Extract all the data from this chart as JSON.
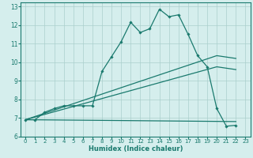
{
  "xlabel": "Humidex (Indice chaleur)",
  "background_color": "#d5eeed",
  "grid_color": "#aacfcc",
  "line_color": "#1a7a6e",
  "xlim": [
    -0.5,
    23.5
  ],
  "ylim": [
    6,
    13.2
  ],
  "xticks": [
    0,
    1,
    2,
    3,
    4,
    5,
    6,
    7,
    8,
    9,
    10,
    11,
    12,
    13,
    14,
    15,
    16,
    17,
    18,
    19,
    20,
    21,
    22,
    23
  ],
  "yticks": [
    6,
    7,
    8,
    9,
    10,
    11,
    12,
    13
  ],
  "series": [
    {
      "x": [
        0,
        1,
        2,
        3,
        4,
        5,
        6,
        7,
        8,
        9,
        10,
        11,
        12,
        13,
        14,
        15,
        16,
        17,
        18,
        19,
        20,
        21,
        22
      ],
      "y": [
        6.9,
        6.9,
        7.3,
        7.5,
        7.65,
        7.65,
        7.65,
        7.65,
        9.5,
        10.3,
        11.1,
        12.15,
        11.6,
        11.8,
        12.85,
        12.45,
        12.55,
        11.5,
        10.35,
        9.75,
        7.5,
        6.55,
        6.6
      ],
      "marker": "D"
    },
    {
      "x": [
        0,
        20,
        22
      ],
      "y": [
        6.9,
        10.35,
        10.2
      ],
      "marker": ""
    },
    {
      "x": [
        0,
        20,
        22
      ],
      "y": [
        6.9,
        9.75,
        9.6
      ],
      "marker": ""
    },
    {
      "x": [
        0,
        22
      ],
      "y": [
        6.9,
        6.8
      ],
      "marker": ""
    }
  ]
}
